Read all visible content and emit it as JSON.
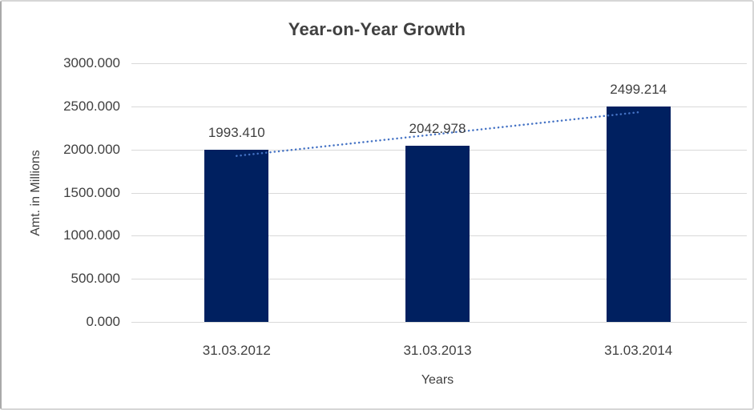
{
  "chart_data": {
    "type": "bar",
    "title": "Year-on-Year Growth",
    "categories": [
      "31.03.2012",
      "31.03.2013",
      "31.03.2014"
    ],
    "values": [
      1993.41,
      2042.978,
      2499.214
    ],
    "data_labels": [
      "1993.410",
      "2042.978",
      "2499.214"
    ],
    "xlabel": "Years",
    "ylabel": "Amt. in Millions",
    "ylim": [
      0,
      3000
    ],
    "ytick_step": 500,
    "ytick_labels": [
      "0.000",
      "500.000",
      "1000.000",
      "1500.000",
      "2000.000",
      "2500.000",
      "3000.000"
    ],
    "grid": true,
    "legend": "none",
    "colors": {
      "bar": "#002060",
      "trendline": "#4472c4",
      "gridline": "#d9d9d9",
      "title_text": "#404040",
      "axis_text": "#404040",
      "frame_border": "#d6d6d6"
    },
    "trendline": {
      "type": "linear",
      "style": "dotted",
      "series": "values"
    }
  }
}
